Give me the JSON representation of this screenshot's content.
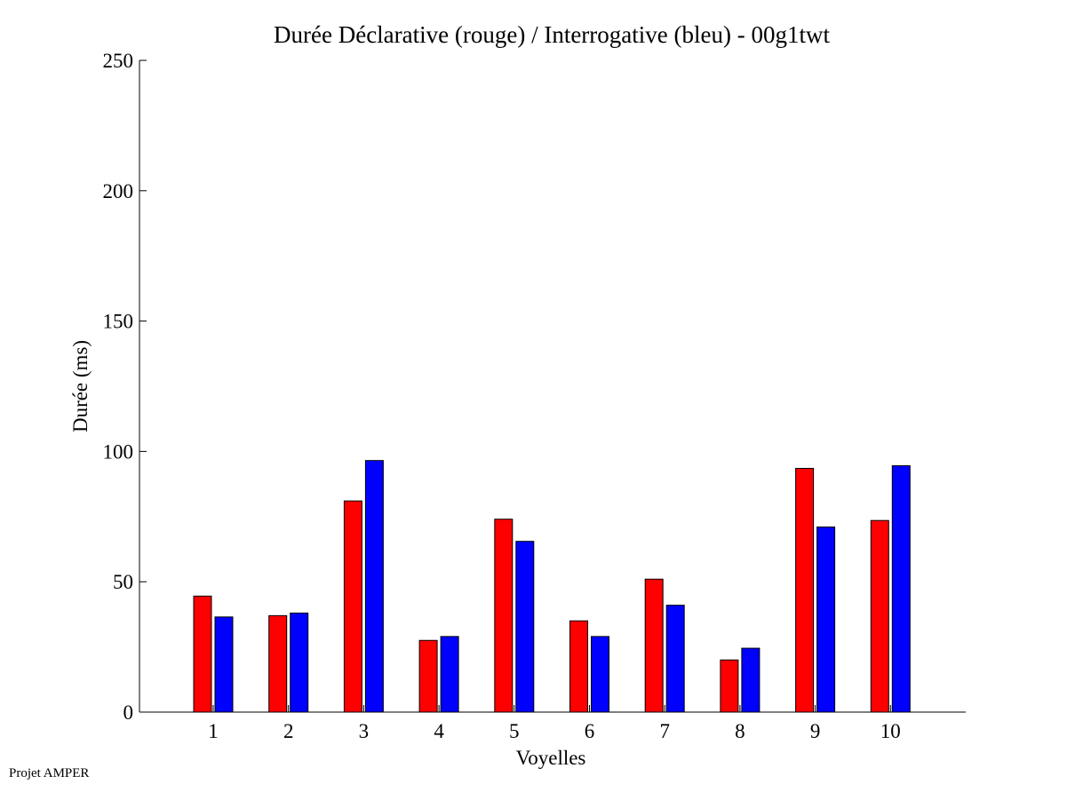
{
  "footer": {
    "text": "Projet AMPER"
  },
  "chart_data": {
    "type": "bar",
    "title": "Durée Déclarative (rouge) / Interrogative (bleu) - 00g1twt",
    "xlabel": "Voyelles",
    "ylabel": "Durée (ms)",
    "ylim": [
      0,
      250
    ],
    "yticks": [
      0,
      50,
      100,
      150,
      200,
      250
    ],
    "categories": [
      "1",
      "2",
      "3",
      "4",
      "5",
      "6",
      "7",
      "8",
      "9",
      "10"
    ],
    "grid": false,
    "legend": "none",
    "series": [
      {
        "color": "#ff0000",
        "values": [
          44.5,
          37,
          81,
          27.5,
          74,
          35,
          51,
          20,
          93.5,
          73.5
        ]
      },
      {
        "color": "#0000ff",
        "values": [
          36.5,
          38,
          96.5,
          29,
          65.5,
          29,
          41,
          24.5,
          71,
          94.5
        ]
      }
    ]
  }
}
